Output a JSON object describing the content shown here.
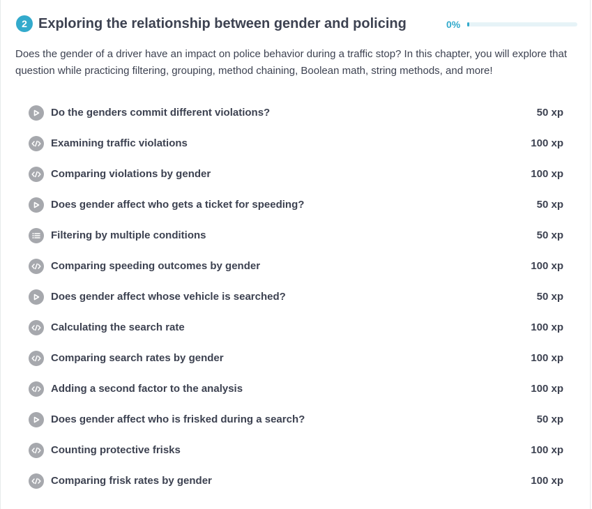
{
  "chapter": {
    "number": "2",
    "title": "Exploring the relationship between gender and policing",
    "progress_label": "0%",
    "progress_value": 0,
    "description": "Does the gender of a driver have an impact on police behavior during a traffic stop? In this chapter, you will explore that question while practicing filtering, grouping, method chaining, Boolean math, string methods, and more!"
  },
  "colors": {
    "accent": "#33aacc",
    "icon_bg": "#a6a8ad",
    "text": "#3d4251"
  },
  "exercises": [
    {
      "type": "video",
      "icon": "play-icon",
      "title": "Do the genders commit different violations?",
      "xp": "50 xp"
    },
    {
      "type": "code",
      "icon": "code-icon",
      "title": "Examining traffic violations",
      "xp": "100 xp"
    },
    {
      "type": "code",
      "icon": "code-icon",
      "title": "Comparing violations by gender",
      "xp": "100 xp"
    },
    {
      "type": "video",
      "icon": "play-icon",
      "title": "Does gender affect who gets a ticket for speeding?",
      "xp": "50 xp"
    },
    {
      "type": "multiple-choice",
      "icon": "list-icon",
      "title": "Filtering by multiple conditions",
      "xp": "50 xp"
    },
    {
      "type": "code",
      "icon": "code-icon",
      "title": "Comparing speeding outcomes by gender",
      "xp": "100 xp"
    },
    {
      "type": "video",
      "icon": "play-icon",
      "title": "Does gender affect whose vehicle is searched?",
      "xp": "50 xp"
    },
    {
      "type": "code",
      "icon": "code-icon",
      "title": "Calculating the search rate",
      "xp": "100 xp"
    },
    {
      "type": "code",
      "icon": "code-icon",
      "title": "Comparing search rates by gender",
      "xp": "100 xp"
    },
    {
      "type": "code",
      "icon": "code-icon",
      "title": "Adding a second factor to the analysis",
      "xp": "100 xp"
    },
    {
      "type": "video",
      "icon": "play-icon",
      "title": "Does gender affect who is frisked during a search?",
      "xp": "50 xp"
    },
    {
      "type": "code",
      "icon": "code-icon",
      "title": "Counting protective frisks",
      "xp": "100 xp"
    },
    {
      "type": "code",
      "icon": "code-icon",
      "title": "Comparing frisk rates by gender",
      "xp": "100 xp"
    }
  ]
}
